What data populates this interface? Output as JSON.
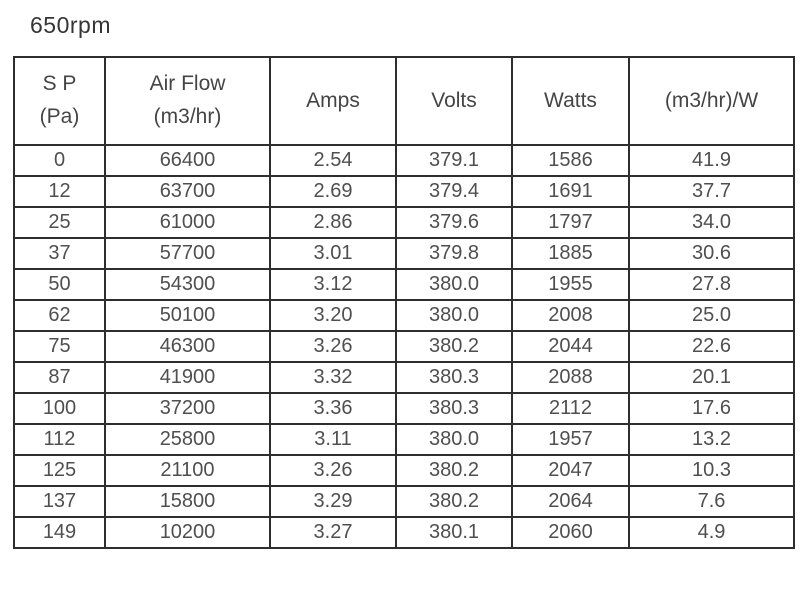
{
  "title": "650rpm",
  "table": {
    "columns": [
      {
        "name": "sp",
        "lines": [
          "S P",
          "(Pa)"
        ]
      },
      {
        "name": "air-flow",
        "lines": [
          "Air Flow",
          "(m3/hr)"
        ]
      },
      {
        "name": "amps",
        "lines": [
          "Amps"
        ]
      },
      {
        "name": "volts",
        "lines": [
          "Volts"
        ]
      },
      {
        "name": "watts",
        "lines": [
          "Watts"
        ]
      },
      {
        "name": "efficiency",
        "lines": [
          "(m3/hr)/W"
        ]
      }
    ],
    "rows": [
      [
        "0",
        "66400",
        "2.54",
        "379.1",
        "1586",
        "41.9"
      ],
      [
        "12",
        "63700",
        "2.69",
        "379.4",
        "1691",
        "37.7"
      ],
      [
        "25",
        "61000",
        "2.86",
        "379.6",
        "1797",
        "34.0"
      ],
      [
        "37",
        "57700",
        "3.01",
        "379.8",
        "1885",
        "30.6"
      ],
      [
        "50",
        "54300",
        "3.12",
        "380.0",
        "1955",
        "27.8"
      ],
      [
        "62",
        "50100",
        "3.20",
        "380.0",
        "2008",
        "25.0"
      ],
      [
        "75",
        "46300",
        "3.26",
        "380.2",
        "2044",
        "22.6"
      ],
      [
        "87",
        "41900",
        "3.32",
        "380.3",
        "2088",
        "20.1"
      ],
      [
        "100",
        "37200",
        "3.36",
        "380.3",
        "2112",
        "17.6"
      ],
      [
        "112",
        "25800",
        "3.11",
        "380.0",
        "1957",
        "13.2"
      ],
      [
        "125",
        "21100",
        "3.26",
        "380.2",
        "2047",
        "10.3"
      ],
      [
        "137",
        "15800",
        "3.29",
        "380.2",
        "2064",
        "7.6"
      ],
      [
        "149",
        "10200",
        "3.27",
        "380.1",
        "2060",
        "4.9"
      ]
    ]
  },
  "chart_data": {
    "type": "table",
    "title": "650rpm",
    "columns": [
      "S P (Pa)",
      "Air Flow (m3/hr)",
      "Amps",
      "Volts",
      "Watts",
      "(m3/hr)/W"
    ],
    "rows": [
      [
        0,
        66400,
        2.54,
        379.1,
        1586,
        41.9
      ],
      [
        12,
        63700,
        2.69,
        379.4,
        1691,
        37.7
      ],
      [
        25,
        61000,
        2.86,
        379.6,
        1797,
        34.0
      ],
      [
        37,
        57700,
        3.01,
        379.8,
        1885,
        30.6
      ],
      [
        50,
        54300,
        3.12,
        380.0,
        1955,
        27.8
      ],
      [
        62,
        50100,
        3.2,
        380.0,
        2008,
        25.0
      ],
      [
        75,
        46300,
        3.26,
        380.2,
        2044,
        22.6
      ],
      [
        87,
        41900,
        3.32,
        380.3,
        2088,
        20.1
      ],
      [
        100,
        37200,
        3.36,
        380.3,
        2112,
        17.6
      ],
      [
        112,
        25800,
        3.11,
        380.0,
        1957,
        13.2
      ],
      [
        125,
        21100,
        3.26,
        380.2,
        2047,
        10.3
      ],
      [
        137,
        15800,
        3.29,
        380.2,
        2064,
        7.6
      ],
      [
        149,
        10200,
        3.27,
        380.1,
        2060,
        4.9
      ]
    ]
  },
  "colors": {
    "background": "#ffffff",
    "border": "#2e2e2e",
    "text": "#4f4f4f"
  }
}
